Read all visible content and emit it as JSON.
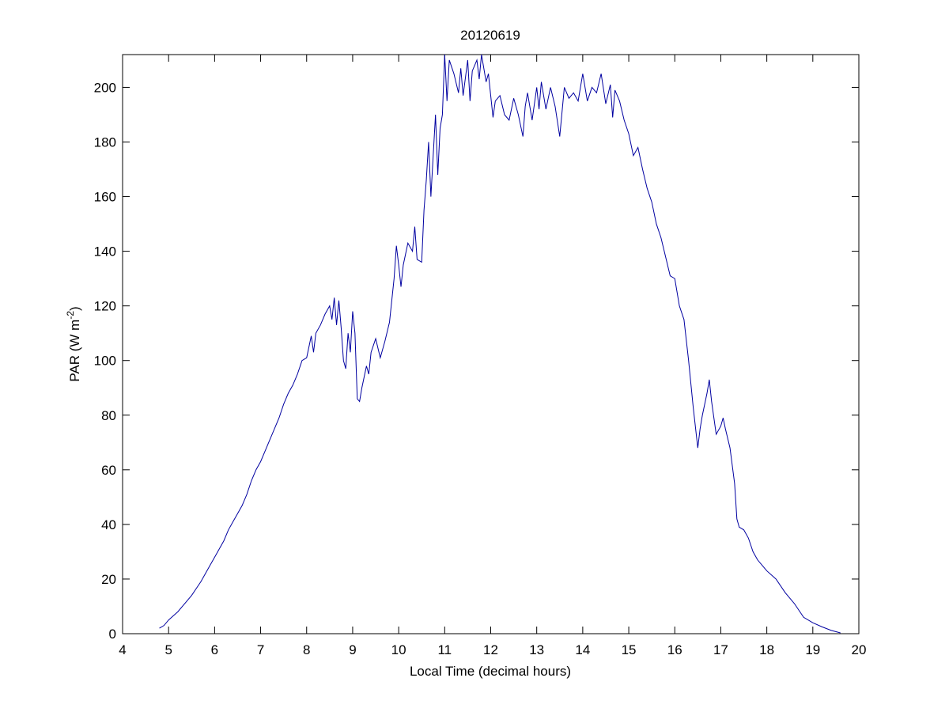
{
  "chart_data": {
    "type": "line",
    "title": "20120619",
    "xlabel": "Local Time (decimal hours)",
    "ylabel": {
      "text": "PAR (W m",
      "superscript": "-2",
      "suffix": ")"
    },
    "xlim": [
      4,
      20
    ],
    "ylim": [
      0,
      212
    ],
    "xticks": [
      4,
      5,
      6,
      7,
      8,
      9,
      10,
      11,
      12,
      13,
      14,
      15,
      16,
      17,
      18,
      19,
      20
    ],
    "yticks": [
      0,
      20,
      40,
      60,
      80,
      100,
      120,
      140,
      160,
      180,
      200
    ],
    "grid": false,
    "series": [
      {
        "color": "#0000a0",
        "x": [
          4.8,
          4.9,
          5.0,
          5.1,
          5.2,
          5.3,
          5.4,
          5.5,
          5.6,
          5.7,
          5.8,
          5.9,
          6.0,
          6.1,
          6.2,
          6.3,
          6.4,
          6.5,
          6.6,
          6.7,
          6.8,
          6.9,
          7.0,
          7.1,
          7.2,
          7.3,
          7.4,
          7.5,
          7.6,
          7.7,
          7.8,
          7.9,
          8.0,
          8.1,
          8.15,
          8.2,
          8.3,
          8.4,
          8.5,
          8.55,
          8.6,
          8.65,
          8.7,
          8.75,
          8.8,
          8.85,
          8.9,
          8.95,
          9.0,
          9.05,
          9.1,
          9.15,
          9.2,
          9.3,
          9.35,
          9.4,
          9.5,
          9.6,
          9.7,
          9.8,
          9.9,
          9.95,
          10.0,
          10.05,
          10.1,
          10.2,
          10.3,
          10.35,
          10.4,
          10.5,
          10.55,
          10.6,
          10.65,
          10.7,
          10.75,
          10.8,
          10.85,
          10.9,
          10.95,
          11.0,
          11.05,
          11.1,
          11.2,
          11.3,
          11.35,
          11.4,
          11.5,
          11.55,
          11.6,
          11.7,
          11.75,
          11.8,
          11.9,
          11.95,
          12.0,
          12.05,
          12.1,
          12.2,
          12.3,
          12.4,
          12.5,
          12.6,
          12.7,
          12.75,
          12.8,
          12.9,
          13.0,
          13.05,
          13.1,
          13.2,
          13.3,
          13.4,
          13.5,
          13.6,
          13.7,
          13.8,
          13.9,
          14.0,
          14.1,
          14.2,
          14.3,
          14.4,
          14.5,
          14.6,
          14.65,
          14.7,
          14.8,
          14.9,
          15.0,
          15.1,
          15.2,
          15.3,
          15.4,
          15.5,
          15.6,
          15.7,
          15.8,
          15.9,
          16.0,
          16.1,
          16.2,
          16.3,
          16.4,
          16.5,
          16.55,
          16.6,
          16.7,
          16.75,
          16.8,
          16.9,
          17.0,
          17.05,
          17.1,
          17.2,
          17.3,
          17.35,
          17.4,
          17.5,
          17.6,
          17.7,
          17.8,
          17.9,
          18.0,
          18.2,
          18.4,
          18.6,
          18.8,
          19.0,
          19.2,
          19.4,
          19.6
        ],
        "values": [
          2,
          3,
          5,
          6.5,
          8,
          10,
          12,
          14,
          16.5,
          19,
          22,
          25,
          28,
          31,
          34,
          38,
          41,
          44,
          47,
          51,
          56,
          60,
          63,
          67,
          71,
          75,
          79,
          84,
          88,
          91,
          95,
          100,
          101,
          109,
          103,
          110,
          113,
          117,
          120,
          115,
          123,
          113,
          122,
          112,
          100,
          97,
          110,
          103,
          118,
          110,
          86,
          85,
          90,
          98,
          95,
          103,
          108,
          101,
          107,
          114,
          130,
          142,
          135,
          127,
          135,
          143,
          140,
          149,
          137,
          136,
          155,
          166,
          180,
          160,
          175,
          190,
          168,
          185,
          190,
          212,
          195,
          210,
          205,
          198,
          207,
          197,
          210,
          195,
          206,
          210,
          203,
          212,
          202,
          205,
          197,
          189,
          195,
          197,
          190,
          188,
          196,
          190,
          182,
          193,
          198,
          188,
          200,
          192,
          202,
          192,
          200,
          193,
          182,
          200,
          196,
          198,
          195,
          205,
          195,
          200,
          198,
          205,
          194,
          201,
          189,
          199,
          195,
          188,
          183,
          175,
          178,
          170,
          163,
          158,
          150,
          145,
          138,
          131,
          130,
          120,
          115,
          100,
          83,
          68,
          75,
          80,
          88,
          93,
          85,
          73,
          76,
          79,
          75,
          68,
          55,
          42,
          39,
          38,
          35,
          30,
          27,
          25,
          23,
          20,
          15,
          11,
          6,
          4,
          2.5,
          1.2,
          0.3
        ]
      }
    ]
  }
}
